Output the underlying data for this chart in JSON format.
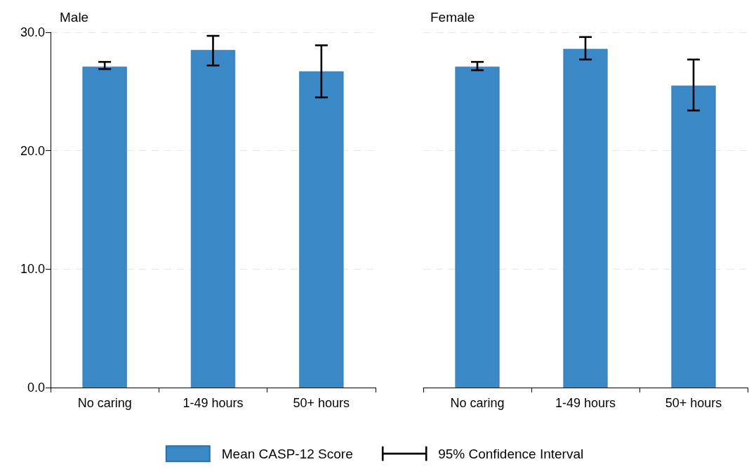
{
  "chart_data": [
    {
      "type": "bar",
      "title": "Male",
      "categories": [
        "No caring",
        "1-49 hours",
        "50+ hours"
      ],
      "series": [
        {
          "name": "Mean CASP-12 Score",
          "color": "#3a88c5",
          "values": [
            27.1,
            28.5,
            26.7
          ],
          "errors": [
            [
              26.9,
              27.5
            ],
            [
              27.2,
              29.7
            ],
            [
              24.5,
              28.9
            ]
          ]
        }
      ],
      "ylim": [
        0,
        30
      ],
      "yticks": [
        {
          "value": 0,
          "label": "0.0"
        },
        {
          "value": 10,
          "label": "10.0"
        },
        {
          "value": 20,
          "label": "20.0"
        },
        {
          "value": 30,
          "label": "30.0"
        }
      ],
      "grid": "y",
      "legend": "bottom",
      "annotations": [
        "95% Confidence Interval"
      ]
    },
    {
      "type": "bar",
      "title": "Female",
      "categories": [
        "No caring",
        "1-49 hours",
        "50+ hours"
      ],
      "series": [
        {
          "color": "#3a88c5",
          "values": [
            27.1,
            28.6,
            25.5
          ],
          "errors": [
            [
              26.8,
              27.5
            ],
            [
              27.7,
              29.6
            ],
            [
              23.4,
              27.7
            ]
          ]
        }
      ],
      "ylim": [
        0,
        30
      ],
      "yticks": [
        0,
        10,
        20,
        30
      ],
      "grid": "y",
      "tick_labels": "x"
    }
  ]
}
